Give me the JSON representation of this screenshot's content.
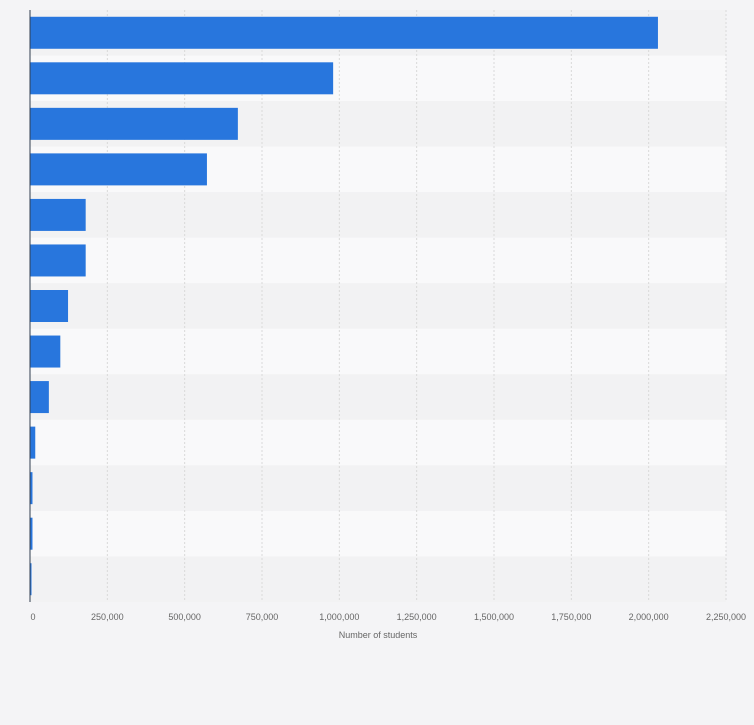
{
  "chart_data": {
    "type": "bar",
    "orientation": "horizontal",
    "title": "",
    "xlabel": "Number of students",
    "ylabel": "",
    "categories": [
      "",
      "",
      "",
      "",
      "",
      "",
      "",
      "",
      "",
      "",
      "",
      "",
      ""
    ],
    "values": [
      2030000,
      980000,
      672000,
      572000,
      180000,
      180000,
      123000,
      98000,
      61000,
      17000,
      8000,
      8000,
      3000
    ],
    "xlim": [
      0,
      2250000
    ],
    "xticks": [
      0,
      250000,
      500000,
      750000,
      1000000,
      1250000,
      1500000,
      1750000,
      2000000,
      2250000
    ],
    "xtick_labels": [
      "0",
      "250,000",
      "500,000",
      "750,000",
      "1,000,000",
      "1,250,000",
      "1,500,000",
      "1,750,000",
      "2,000,000",
      "2,250,000"
    ],
    "grid": true,
    "legend": "none",
    "colors": {
      "bar": "#2876dd",
      "band_light": "#f9f9fa",
      "band_dark": "#f2f2f3",
      "grid": "#d9d9d9",
      "axis": "#303d4e",
      "text": "#666666"
    }
  }
}
